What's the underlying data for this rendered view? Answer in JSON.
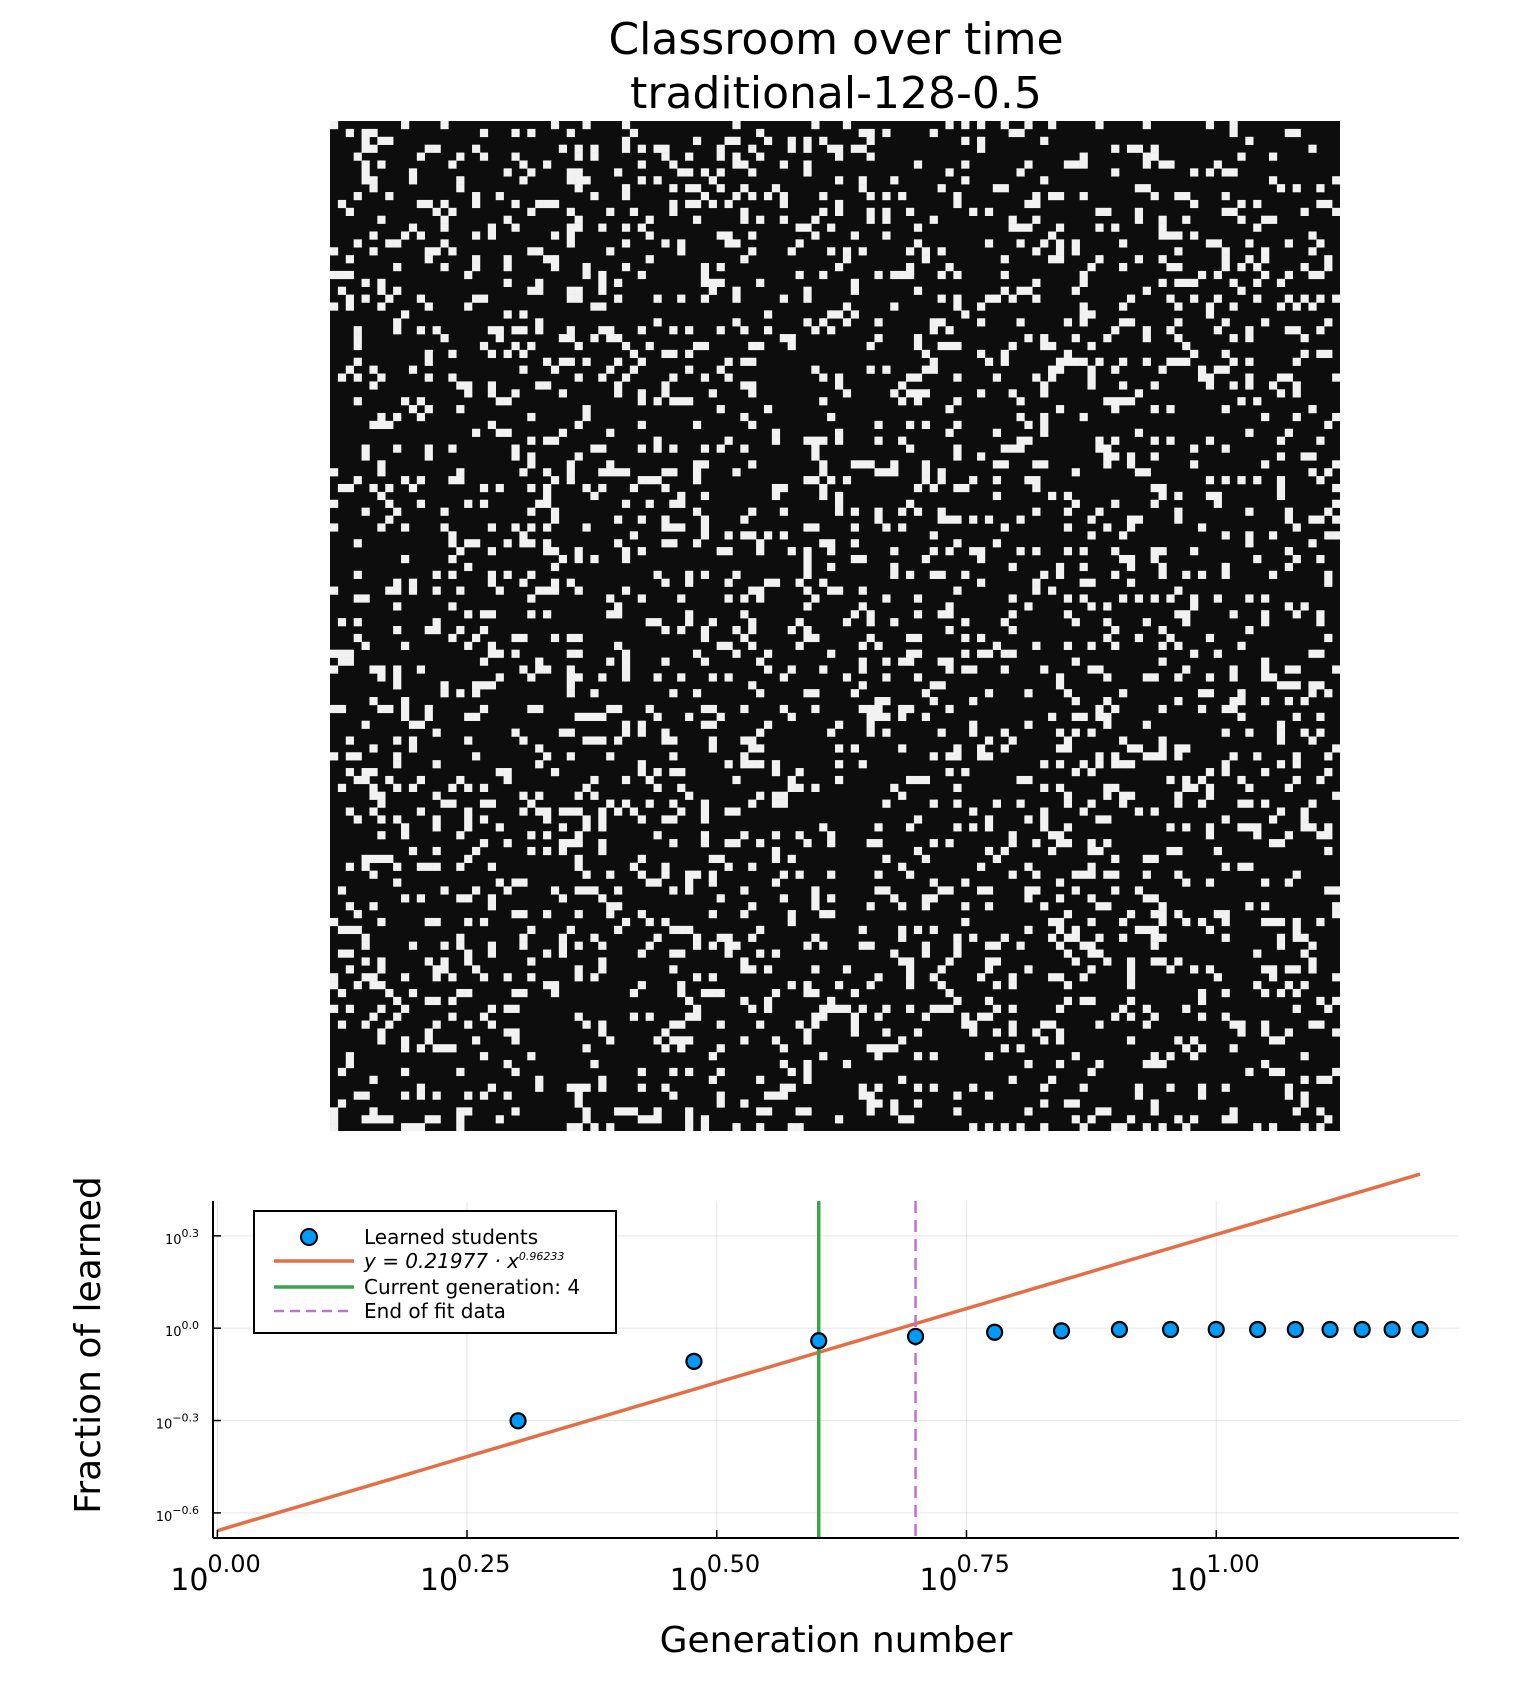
{
  "figure": {
    "title_line1": "Classroom over time",
    "title_line2": "traditional-128-0.5"
  },
  "classroom_grid": {
    "rows": 128,
    "cols": 128,
    "colors": {
      "unlearned": "#0d0d0d",
      "learned": "#f2f2f2"
    }
  },
  "chart_data": {
    "type": "scatter",
    "xlabel": "Generation number",
    "ylabel": "Fraction of learned",
    "xscale": "log10",
    "yscale": "log10",
    "xlim": [
      0.99,
      17.5
    ],
    "ylim": [
      0.208,
      2.59
    ],
    "x_ticks": [
      {
        "value": 1.0,
        "base": "10",
        "exp": "0.00"
      },
      {
        "value": 1.778,
        "base": "10",
        "exp": "0.25"
      },
      {
        "value": 3.162,
        "base": "10",
        "exp": "0.50"
      },
      {
        "value": 5.623,
        "base": "10",
        "exp": "0.75"
      },
      {
        "value": 10.0,
        "base": "10",
        "exp": "1.00"
      }
    ],
    "y_ticks": [
      {
        "value": 0.251,
        "base": "10",
        "exp": "−0.6"
      },
      {
        "value": 0.501,
        "base": "10",
        "exp": "−0.3"
      },
      {
        "value": 1.0,
        "base": "10",
        "exp": "0.0"
      },
      {
        "value": 1.995,
        "base": "10",
        "exp": "0.3"
      }
    ],
    "grid": true,
    "legend_position": "top-left",
    "series": [
      {
        "name": "Learned students",
        "kind": "scatter",
        "color": "#009af9",
        "x": [
          2,
          3,
          4,
          5,
          6,
          7,
          8,
          9,
          10,
          11,
          12,
          13,
          14,
          15,
          16
        ],
        "y": [
          0.5,
          0.78,
          0.91,
          0.94,
          0.97,
          0.98,
          0.99,
          0.99,
          0.99,
          0.99,
          0.99,
          0.99,
          0.99,
          0.99,
          0.99
        ]
      },
      {
        "name": "y = 0.21977 · x^0.96233",
        "legend_math": {
          "lhs": "y = 0.21977 · x",
          "exp": "0.96233"
        },
        "kind": "fit-line",
        "color": "#e26f46",
        "coef": 0.21977,
        "power": 0.96233
      },
      {
        "name": "Current generation: 4",
        "kind": "vline",
        "color": "#3da44d",
        "x": 4
      },
      {
        "name": "End of fit data",
        "kind": "vline-dashed",
        "color": "#c271d2",
        "x": 5
      }
    ]
  }
}
